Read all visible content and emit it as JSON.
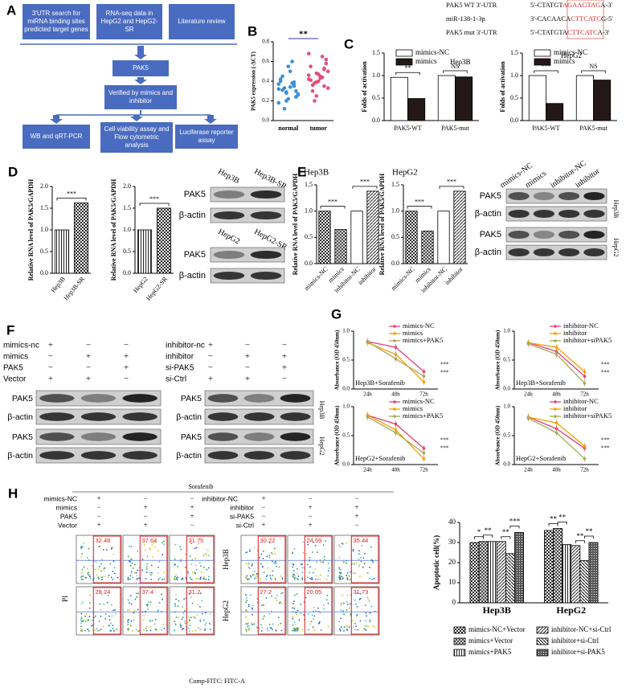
{
  "panel_labels": [
    "A",
    "B",
    "C",
    "D",
    "E",
    "F",
    "G",
    "H"
  ],
  "A": {
    "top_boxes": [
      "3'UTR search for miRNA binding sites predicted target genes",
      "RNA-seq data in HepG2 and HepG2-SR",
      "Literature review"
    ],
    "middle_boxes": [
      "PAK5",
      "Verified by mimics and inhibitor"
    ],
    "bottom_boxes": [
      "WB and qRT-PCR",
      "Cell viability assay and Flow cytometric analysis",
      "Luciferase reporter assay"
    ]
  },
  "B": {
    "type": "scatter",
    "ylabel": "PAK5 expression (-ΔCT)",
    "categories": [
      "normal",
      "tumor"
    ],
    "groups": [
      {
        "color": "#3b8fd9",
        "values": [
          0.32,
          0.28,
          0.35,
          0.4,
          0.22,
          0.3,
          0.45,
          0.5,
          0.26,
          0.33,
          0.38,
          0.18,
          0.29,
          0.36,
          0.42,
          0.55,
          0.24,
          0.31,
          0.34,
          0.27,
          0.12,
          0.6,
          0.37,
          0.2,
          0.39
        ]
      },
      {
        "color": "#e0507a",
        "values": [
          0.42,
          0.48,
          0.35,
          0.55,
          0.4,
          0.62,
          0.3,
          0.45,
          0.5,
          0.38,
          0.44,
          0.68,
          0.25,
          0.52,
          0.41,
          0.47,
          0.58,
          0.36,
          0.43,
          0.33,
          0.2,
          0.65,
          0.46,
          0.39,
          0.53
        ]
      }
    ],
    "annotation": "**",
    "ylim": [
      0,
      0.8
    ],
    "yticks": [
      {
        "value": 0,
        "label": "0.0"
      },
      0.2,
      0.4,
      0.6,
      0.8
    ]
  },
  "C": {
    "sequences": [
      {
        "label": "PAK5 WT 3'-UTR",
        "seq": [
          "5'-CTATGT",
          "AGAAGTAG",
          "A-3'"
        ]
      },
      {
        "label": "miR-138-1-3p",
        "seq": [
          "3'-CACAACA",
          "CTTCATC",
          "G-5'"
        ]
      },
      {
        "label": "PAK5 mut 3'-UTR",
        "seq": [
          "5'-CTATGTA",
          "CTTCATC",
          "A-3'"
        ]
      }
    ],
    "charts": [
      {
        "type": "bar",
        "cell": "Hep3B",
        "ylabel": "Folds of activation",
        "categories": [
          "PAK5-WT",
          "PAK5-mut"
        ],
        "series": [
          {
            "name": "mimics-NC",
            "color": "#ffffff",
            "values": [
              0.96,
              1.0
            ]
          },
          {
            "name": "mimics",
            "color": "#231815",
            "values": [
              0.49,
              0.97
            ]
          }
        ],
        "annotations": [
          "**",
          "NS"
        ],
        "ylim": [
          0,
          1.5
        ],
        "yticks": [
          {
            "value": 0,
            "label": "0.0"
          },
          0.5,
          {
            "value": 1,
            "label": "1.0"
          },
          1.5
        ]
      },
      {
        "type": "bar",
        "cell": "HepG2",
        "ylabel": "Folds of activation",
        "categories": [
          "PAK5-WT",
          "PAK5-mut"
        ],
        "series": [
          {
            "name": "mimics-NC",
            "color": "#ffffff",
            "values": [
              1.0,
              1.0
            ]
          },
          {
            "name": "mimics",
            "color": "#231815",
            "values": [
              0.38,
              0.9
            ]
          }
        ],
        "annotations": [
          "***",
          "NS"
        ],
        "ylim": [
          0,
          1.5
        ],
        "yticks": [
          {
            "value": 0,
            "label": "0.0"
          },
          0.5,
          {
            "value": 1,
            "label": "1.0"
          },
          1.5
        ]
      }
    ]
  },
  "D": {
    "charts": [
      {
        "type": "bar",
        "ylabel": "Relative RNA level of PAK5/GAPDH",
        "categories": [
          "Hep3B",
          "Hep3B-SR"
        ],
        "values": [
          1.0,
          1.62
        ],
        "annotations": [
          "***"
        ],
        "ylim": [
          0,
          2
        ],
        "yticks": [
          {
            "value": 0,
            "label": "0.0"
          },
          0.5,
          {
            "value": 1,
            "label": "1.0"
          },
          1.5,
          {
            "value": 2,
            "label": "2.0"
          }
        ]
      },
      {
        "type": "bar",
        "ylabel": "Relative RNA level of PAK5/GAPDH",
        "categories": [
          "HepG2",
          "HepG2-SR"
        ],
        "values": [
          1.0,
          1.5
        ],
        "annotations": [
          "***"
        ],
        "ylim": [
          0,
          2
        ],
        "yticks": [
          {
            "value": 0,
            "label": "0.0"
          },
          0.5,
          {
            "value": 1,
            "label": "1.0"
          },
          1.5,
          {
            "value": 2,
            "label": "2.0"
          }
        ]
      }
    ],
    "blots": [
      {
        "lanes": [
          "Hep3B",
          "Hep3B-SR"
        ],
        "rows": [
          "PAK5",
          "β-actin"
        ]
      },
      {
        "lanes": [
          "HepG2",
          "HepG2-SR"
        ],
        "rows": [
          "PAK5",
          "β-actin"
        ]
      }
    ]
  },
  "E": {
    "charts": [
      {
        "type": "bar",
        "cell": "Hep3B",
        "ylabel": "Relative RNA level of PAK5/GAPDH",
        "categories": [
          "mimics-NC",
          "mimics",
          "inhibitor-NC",
          "inhibitor"
        ],
        "values": [
          1.0,
          0.65,
          1.0,
          1.38
        ],
        "annotations": [
          "***",
          "***"
        ],
        "ylim": [
          0,
          1.5
        ],
        "yticks": [
          {
            "value": 0,
            "label": "0.0"
          },
          0.5,
          {
            "value": 1,
            "label": "1.0"
          },
          1.5
        ]
      },
      {
        "type": "bar",
        "cell": "HepG2",
        "ylabel": "Relative RNA level of PAK5/GAPDH",
        "categories": [
          "mimics-NC",
          "mimics",
          "inhibitor-NC",
          "inhibitor"
        ],
        "values": [
          1.0,
          0.62,
          1.0,
          1.38
        ],
        "annotations": [
          "***",
          "***"
        ],
        "ylim": [
          0,
          1.5
        ],
        "yticks": [
          {
            "value": 0,
            "label": "0.0"
          },
          0.5,
          {
            "value": 1,
            "label": "1.0"
          },
          1.5
        ]
      }
    ],
    "blot": {
      "lanes": [
        "mimics-NC",
        "mimics",
        "inhibitor-NC",
        "inhibitor"
      ],
      "rows": [
        "PAK5",
        "β-actin",
        "PAK5",
        "β-actin"
      ],
      "cells": [
        "Hep3B",
        "HepG2"
      ]
    }
  },
  "F": {
    "left": {
      "rows": [
        {
          "name": "mimics-nc",
          "signs": [
            "+",
            "−",
            "−"
          ]
        },
        {
          "name": "mimics",
          "signs": [
            "−",
            "+",
            "+"
          ]
        },
        {
          "name": "PAK5",
          "signs": [
            "−",
            "−",
            "+"
          ]
        },
        {
          "name": "Vector",
          "signs": [
            "+",
            "+",
            "−"
          ]
        }
      ],
      "blot_rows": [
        "PAK5",
        "β-actin",
        "PAK5",
        "β-actin"
      ]
    },
    "right": {
      "rows": [
        {
          "name": "inhibitor-nc",
          "signs": [
            "+",
            "−",
            "−"
          ]
        },
        {
          "name": "inhibitor",
          "signs": [
            "−",
            "+",
            "+"
          ]
        },
        {
          "name": "si-PAK5",
          "signs": [
            "−",
            "−",
            "+"
          ]
        },
        {
          "name": "si-Ctrl",
          "signs": [
            "+",
            "+",
            "−"
          ]
        }
      ],
      "blot_rows": [
        "PAK5",
        "β-actin",
        "PAK5",
        "β-actin"
      ]
    },
    "cells": [
      "Hep3B",
      "HepG2"
    ]
  },
  "G": {
    "charts": [
      {
        "type": "line",
        "title": "Hep3B+Sorafenib",
        "ylabel": "Absorbance (OD 450nm)",
        "x": [
          "24h",
          "48h",
          "72h"
        ],
        "series": [
          {
            "name": "mimics-NC",
            "color": "#e4407b",
            "values": [
              0.82,
              0.72,
              0.3
            ]
          },
          {
            "name": "mimics",
            "color": "#f5a000",
            "values": [
              0.8,
              0.6,
              0.12
            ]
          },
          {
            "name": "mimics+PAK5",
            "color": "#a8a857",
            "values": [
              0.82,
              0.52,
              0.22
            ]
          }
        ],
        "annotations": [
          "***",
          "***"
        ],
        "ylim": [
          0,
          1
        ],
        "yticks": [
          {
            "value": 0,
            "label": "0.0"
          },
          0.5,
          {
            "value": 1,
            "label": "1.0"
          }
        ]
      },
      {
        "type": "line",
        "title": "Hep3B+Sorafenib",
        "ylabel": "Absorbance (OD 450nm)",
        "x": [
          "24h",
          "48h",
          "72h"
        ],
        "series": [
          {
            "name": "inhibitor-NC",
            "color": "#e4407b",
            "values": [
              0.8,
              0.65,
              0.22
            ]
          },
          {
            "name": "inhibitor",
            "color": "#f5a000",
            "values": [
              0.8,
              0.72,
              0.3
            ]
          },
          {
            "name": "inhibitor+siPAK5",
            "color": "#a8a857",
            "values": [
              0.78,
              0.6,
              0.1
            ]
          }
        ],
        "annotations": [
          "***",
          "***"
        ],
        "ylim": [
          0,
          1
        ],
        "yticks": [
          {
            "value": 0,
            "label": "0.0"
          },
          0.5,
          {
            "value": 1,
            "label": "1.0"
          }
        ]
      },
      {
        "type": "line",
        "title": "HepG2+Sorafenib",
        "ylabel": "Absorbance (OD 450nm)",
        "x": [
          "24h",
          "48h",
          "72h"
        ],
        "series": [
          {
            "name": "mimics-NC",
            "color": "#e4407b",
            "values": [
              0.85,
              0.7,
              0.28
            ]
          },
          {
            "name": "mimics",
            "color": "#f5a000",
            "values": [
              0.85,
              0.6,
              0.1
            ]
          },
          {
            "name": "mimics+PAK5",
            "color": "#a8a857",
            "values": [
              0.82,
              0.55,
              0.2
            ]
          }
        ],
        "annotations": [
          "***",
          "***"
        ],
        "ylim": [
          0,
          1
        ],
        "yticks": [
          {
            "value": 0,
            "label": "0.0"
          },
          0.5,
          {
            "value": 1,
            "label": "1.0"
          }
        ]
      },
      {
        "type": "line",
        "title": "HepG2+Sorafenib",
        "ylabel": "Absorbance (OD 450nm)",
        "x": [
          "24h",
          "48h",
          "72h"
        ],
        "series": [
          {
            "name": "inhibitor-NC",
            "color": "#e4407b",
            "values": [
              0.82,
              0.62,
              0.28
            ]
          },
          {
            "name": "inhibitor",
            "color": "#f5a000",
            "values": [
              0.82,
              0.72,
              0.32
            ]
          },
          {
            "name": "inhibitor+siPAK5",
            "color": "#a8a857",
            "values": [
              0.8,
              0.55,
              0.1
            ]
          }
        ],
        "annotations": [
          "***",
          "***"
        ],
        "ylim": [
          0,
          1
        ],
        "yticks": [
          {
            "value": 0,
            "label": "0.0"
          },
          0.5,
          {
            "value": 1,
            "label": "1.0"
          }
        ]
      }
    ]
  },
  "H": {
    "treatment": "Sorafenib",
    "left_rows": [
      {
        "name": "mimics-NC",
        "signs": [
          "+",
          "−",
          "−"
        ]
      },
      {
        "name": "mimics",
        "signs": [
          "−",
          "+",
          "+"
        ]
      },
      {
        "name": "PAK5",
        "signs": [
          "−",
          "−",
          "+"
        ]
      },
      {
        "name": "Vector",
        "signs": [
          "+",
          "+",
          "−"
        ]
      }
    ],
    "right_rows": [
      {
        "name": "inhibitor-NC",
        "signs": [
          "+",
          "−",
          "−"
        ]
      },
      {
        "name": "inhibitor",
        "signs": [
          "−",
          "+",
          "+"
        ]
      },
      {
        "name": "si-PAK5",
        "signs": [
          "−",
          "−",
          "+"
        ]
      },
      {
        "name": "si-Ctrl",
        "signs": [
          "+",
          "+",
          "−"
        ]
      }
    ],
    "cells": [
      "Hep3B",
      "HepG2"
    ],
    "percentages": [
      [
        32.48,
        37.64,
        31.75,
        30.22,
        24.59,
        35.44
      ],
      [
        28.24,
        37.4,
        31.2,
        27.2,
        20.05,
        31.73
      ]
    ],
    "ylabel": "PI",
    "xlabel": "Comp-FITC: FITC-A",
    "chart": {
      "type": "bar",
      "ylabel": "Apoptotic cell(%)",
      "categories": [
        "Hep3B",
        "HepG2"
      ],
      "series": [
        {
          "name": "mimics-NC+Vector",
          "values": [
            30,
            36
          ]
        },
        {
          "name": "mimics+Vector",
          "values": [
            30.5,
            37
          ]
        },
        {
          "name": "mimics+PAK5",
          "values": [
            30.5,
            29
          ]
        },
        {
          "name": "inhibitor-NC+si-Ctrl",
          "values": [
            30.5,
            28.5
          ]
        },
        {
          "name": "inhibitor+si-Ctrl",
          "values": [
            24.5,
            21
          ]
        },
        {
          "name": "inhibitor+si-PAK5",
          "values": [
            35,
            30
          ]
        }
      ],
      "annotations": [
        [
          "*",
          "**",
          "**",
          "***"
        ],
        [
          "**",
          "**",
          "**",
          "**"
        ]
      ],
      "ylim": [
        0,
        40
      ],
      "yticks": [
        0,
        10,
        20,
        30,
        40
      ]
    }
  }
}
